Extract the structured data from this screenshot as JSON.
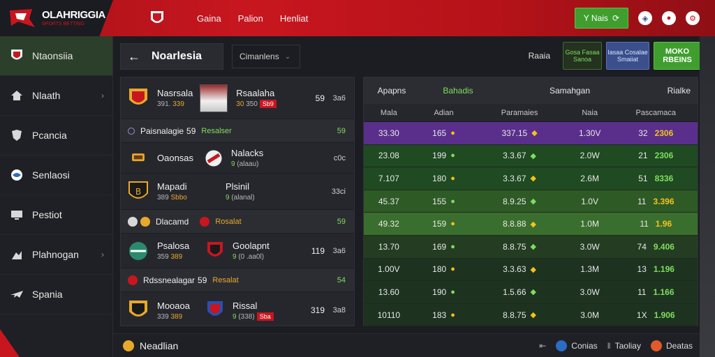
{
  "brand": {
    "name": "OLAHRIGGIA",
    "sub": "SPORTS BETTING"
  },
  "topnav": [
    "Gaina",
    "Palion",
    "Henliat"
  ],
  "top_right": {
    "cta": "Y Nais"
  },
  "sidebar": {
    "items": [
      {
        "label": "Ntaonsiia",
        "icon": "crest-icon",
        "active": true
      },
      {
        "label": "Nlaath",
        "icon": "home-icon",
        "chevron": true
      },
      {
        "label": "Pcancia",
        "icon": "shield-icon"
      },
      {
        "label": "Senlaosi",
        "icon": "globe-icon"
      },
      {
        "label": "Pestiot",
        "icon": "monitor-icon"
      },
      {
        "label": "Plahnogan",
        "icon": "runner-icon",
        "chevron": true
      },
      {
        "label": "Spania",
        "icon": "plane-icon"
      }
    ]
  },
  "subheader": {
    "title": "Noarlesia",
    "dropdown": "Cimanlens",
    "right_text": "Raaia",
    "chip1": "Gosa Fasaa Sanoa",
    "chip2": "Iasaa Cosalae Smaiiat",
    "chip3": "MOKO RBEINS"
  },
  "matches": {
    "row1": {
      "team": "Nasrsala",
      "stats_a": "391.",
      "stats_b": "339",
      "player": "Rsaalaha",
      "ps_a": "30",
      "ps_b": "350",
      "badge": "Sb9",
      "num1": "59",
      "num2": "3a6"
    },
    "band1": {
      "title": "Paisnalagie",
      "code": "59",
      "tag": "Resalser",
      "num": "59"
    },
    "row2": {
      "team": "Oaonsas",
      "opp": "Nalacks",
      "opp_sub": "(alaau)",
      "opp_num": "9",
      "num": "c0c"
    },
    "row3": {
      "team": "Mapadi",
      "stats_a": "389",
      "stats_b": "Sbbo",
      "opp": "Plsinil",
      "opp_sub": "(alanal)",
      "opp_num": "9",
      "num": "33ci"
    },
    "band2": {
      "title": "Dlacamd",
      "tag": "Rosalat",
      "num": "59"
    },
    "row4": {
      "team": "Psalosa",
      "stats_a": "359",
      "stats_b": "389",
      "opp": "Goolapnt",
      "opp_sub": "(0 .aa0l)",
      "opp_num": "9",
      "num1": "119",
      "num2": "3a6"
    },
    "band3": {
      "title": "Rdssnealagar",
      "code": "59",
      "tag": "Resalat",
      "num": "54"
    },
    "row5": {
      "team": "Mooaoa",
      "stats_a": "339",
      "stats_b": "389",
      "opp": "Rissal",
      "opp_sub": "(338)",
      "opp_num": "9",
      "badge": "Sba",
      "num1": "319",
      "num2": "3a8"
    }
  },
  "table": {
    "header1": [
      "Apapns",
      "Bahadis",
      "Samahgan",
      "Rialke"
    ],
    "header2": [
      "Mala",
      "Adian",
      "Paramaies",
      "Naia",
      "Pascamaca"
    ],
    "rows": [
      {
        "style": "purple",
        "a": "33.30",
        "b": "165",
        "c": "337.15",
        "d": "1.30V",
        "e1": "32",
        "e2": "2306"
      },
      {
        "style": "g1",
        "a": "23.08",
        "b": "199",
        "c": "3.3.67",
        "d": "2.0W",
        "e1": "21",
        "e2": "2306"
      },
      {
        "style": "g1",
        "a": "7.107",
        "b": "180",
        "c": "3.3.67",
        "d": "2.6M",
        "e1": "51",
        "e2": "8336"
      },
      {
        "style": "g2",
        "a": "45.37",
        "b": "155",
        "c": "8.9.25",
        "d": "1.0V",
        "e1": "11",
        "e2": "3.396"
      },
      {
        "style": "g3",
        "a": "49.32",
        "b": "159",
        "c": "8.8.88",
        "d": "1.0M",
        "e1": "11",
        "e2": "1.96"
      },
      {
        "style": "g4",
        "a": "13.70",
        "b": "169",
        "c": "8.8.75",
        "d": "3.0W",
        "e1": "74",
        "e2": "9.406"
      },
      {
        "style": "g5",
        "a": "1.00V",
        "b": "180",
        "c": "3.3.63",
        "d": "1.3M",
        "e1": "13",
        "e2": "1.196"
      },
      {
        "style": "g5",
        "a": "13.60",
        "b": "190",
        "c": "1.5.66",
        "d": "3.0W",
        "e1": "11",
        "e2": "1.166"
      },
      {
        "style": "g5",
        "a": "10110",
        "b": "183",
        "c": "8.8.75",
        "d": "3.0M",
        "e1": "1X",
        "e2": "1.906"
      }
    ]
  },
  "footer": {
    "left": "Neadlian",
    "links": [
      "Conias",
      "Taoliay",
      "Deatas"
    ]
  }
}
